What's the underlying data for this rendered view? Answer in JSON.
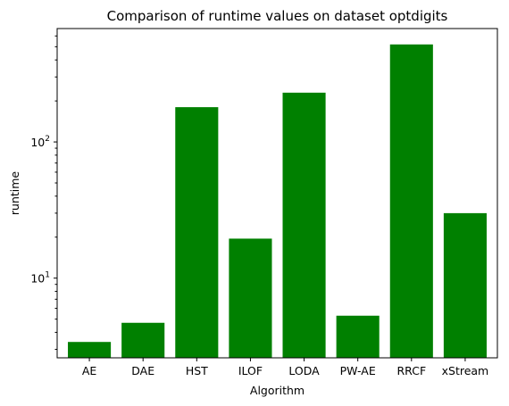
{
  "chart_data": {
    "type": "bar",
    "title": "Comparison of runtime values on dataset optdigits",
    "xlabel": "Algorithm",
    "ylabel": "runtime",
    "yscale": "log",
    "ylim": [
      2.6,
      680
    ],
    "categories": [
      "AE",
      "DAE",
      "HST",
      "ILOF",
      "LODA",
      "PW-AE",
      "RRCF",
      "xStream"
    ],
    "values": [
      3.4,
      4.7,
      180,
      19.5,
      230,
      5.3,
      520,
      30
    ],
    "bar_color": "#008000",
    "yticks": [
      {
        "value": 10,
        "base": "10",
        "exp": "1"
      },
      {
        "value": 100,
        "base": "10",
        "exp": "2"
      }
    ],
    "grid": false
  }
}
